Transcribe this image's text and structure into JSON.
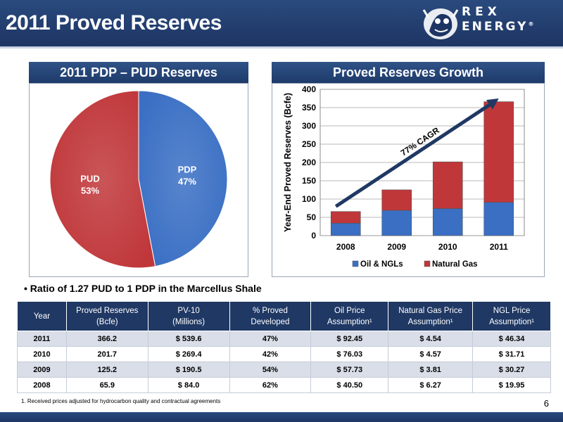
{
  "slide": {
    "title": "2011 Proved Reserves",
    "page_number": "6"
  },
  "logo": {
    "line1": "REX",
    "line2": "ENERGY",
    "mark": "®"
  },
  "colors": {
    "navy": "#1f3864",
    "pdp_blue": "#3a6fc4",
    "pud_red": "#c0373a"
  },
  "pie_panel": {
    "title": "2011 PDP – PUD Reserves"
  },
  "bar_panel": {
    "title": "Proved Reserves Growth",
    "annotation": "77% CAGR"
  },
  "bullet": "• Ratio of 1.27 PUD to 1 PDP in the Marcellus Shale",
  "chart_data": [
    {
      "type": "pie",
      "title": "2011 PDP – PUD Reserves",
      "slices": [
        {
          "label": "PDP",
          "value": 47,
          "display": "47%",
          "color": "#3a6fc4"
        },
        {
          "label": "PUD",
          "value": 53,
          "display": "53%",
          "color": "#c0373a"
        }
      ]
    },
    {
      "type": "bar",
      "stacked": true,
      "title": "Proved Reserves Growth",
      "categories": [
        "2008",
        "2009",
        "2010",
        "2011"
      ],
      "series": [
        {
          "name": "Oil & NGLs",
          "color": "#3a6fc4",
          "values": [
            34,
            69,
            74,
            91
          ]
        },
        {
          "name": "Natural Gas",
          "color": "#c0373a",
          "values": [
            31.9,
            56.2,
            127.7,
            275.2
          ]
        }
      ],
      "ylabel": "Year-End Proved Reserves (Bcfe)",
      "ylim": [
        0,
        400
      ],
      "yticks": [
        0,
        50,
        100,
        150,
        200,
        250,
        300,
        350,
        400
      ],
      "grid": true,
      "legend": "bottom",
      "annotation": "77% CAGR"
    }
  ],
  "table": {
    "headers": [
      "Year",
      "Proved Reserves\n(Bcfe)",
      "PV-10\n(Millions)",
      "% Proved\nDeveloped",
      "Oil Price\nAssumption¹",
      "Natural Gas Price\nAssumption¹",
      "NGL Price\nAssumption¹"
    ],
    "rows": [
      [
        "2011",
        "366.2",
        "$ 539.6",
        "47%",
        "$ 92.45",
        "$ 4.54",
        "$ 46.34"
      ],
      [
        "2010",
        "201.7",
        "$ 269.4",
        "42%",
        "$ 76.03",
        "$ 4.57",
        "$ 31.71"
      ],
      [
        "2009",
        "125.2",
        "$ 190.5",
        "54%",
        "$ 57.73",
        "$ 3.81",
        "$ 30.27"
      ],
      [
        "2008",
        "65.9",
        "$ 84.0",
        "62%",
        "$ 40.50",
        "$ 6.27",
        "$ 19.95"
      ]
    ]
  },
  "footnote": "1. Received prices adjusted for  hydrocarbon quality and contractual agreements"
}
